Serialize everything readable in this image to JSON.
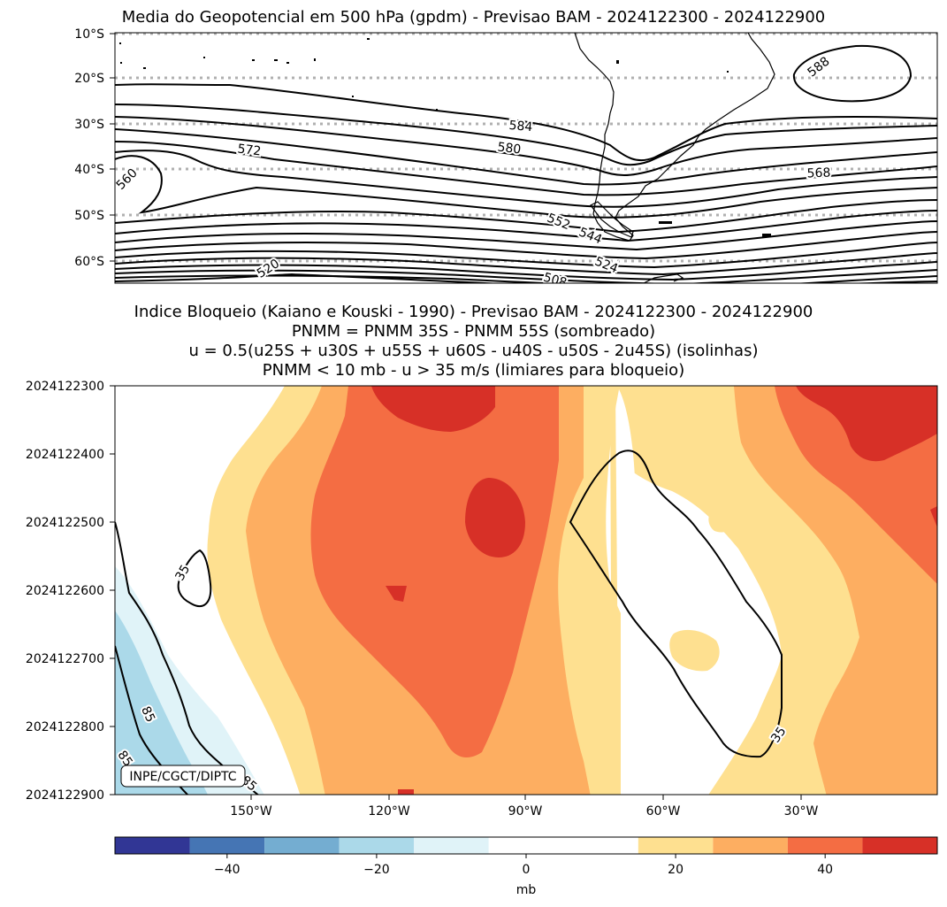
{
  "chart_data": [
    {
      "type": "contour-map",
      "title": "Media do Geopotencial em 500 hPa (gpdm) - Previsao BAM - 2024122300 - 2024122900",
      "ytick_labels": [
        "10°S",
        "20°S",
        "30°S",
        "40°S",
        "50°S",
        "60°S"
      ],
      "contour_labels": [
        "588",
        "584",
        "580",
        "572",
        "568",
        "560",
        "552",
        "544",
        "524",
        "520",
        "508"
      ],
      "grid": true
    },
    {
      "type": "filled-contour",
      "title_lines": [
        "Indice Bloqueio (Kaiano e Kouski - 1990) - Previsao BAM - 2024122300 - 2024122900",
        "PNMM = PNMM 35S - PNMM 55S (sombreado)",
        "u = 0.5(u25S + u30S + u55S + u60S - u40S - u50S - 2u45S) (isolinhas)",
        "PNMM < 10 mb - u > 35 m/s (limiares para bloqueio)"
      ],
      "ytick_labels": [
        "2024122300",
        "2024122400",
        "2024122500",
        "2024122600",
        "2024122700",
        "2024122800",
        "2024122900"
      ],
      "xtick_labels": [
        "150°W",
        "120°W",
        "90°W",
        "60°W",
        "30°W"
      ],
      "contour_labels": [
        "35",
        "35",
        "85",
        "85",
        "85"
      ],
      "annotation": "INPE/CGCT/DIPTC",
      "colorbar": {
        "levels": [
          -55,
          -45,
          -35,
          -25,
          -15,
          -5,
          5,
          15,
          25,
          35,
          45,
          55
        ],
        "colors": [
          "#313695",
          "#4575b4",
          "#74add1",
          "#abd9e9",
          "#e0f3f8",
          "#ffffff",
          "#ffffff",
          "#fee090",
          "#fdae61",
          "#f46d43",
          "#d73027",
          "#a50026"
        ],
        "tick_labels": [
          "−40",
          "−20",
          "0",
          "20",
          "40"
        ],
        "tick_values": [
          -40,
          -20,
          0,
          20,
          40
        ],
        "label": "mb"
      }
    }
  ]
}
